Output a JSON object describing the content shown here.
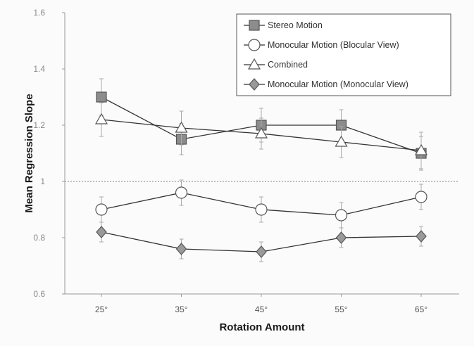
{
  "chart_data": {
    "type": "line",
    "title": "",
    "xlabel": "Rotation Amount",
    "ylabel": "Mean Regression Slope",
    "categories": [
      "25°",
      "35°",
      "45°",
      "55°",
      "65°"
    ],
    "ylim": [
      0.6,
      1.6
    ],
    "yticks": [
      "0.6",
      "0.8",
      "1",
      "1.2",
      "1.4",
      "1.6"
    ],
    "reference_line": 1.0,
    "legend_position": "top-right",
    "grid": false,
    "series": [
      {
        "name": "Stereo Motion",
        "marker": "square",
        "color": "#8c8c8c",
        "values": [
          1.3,
          1.15,
          1.2,
          1.2,
          1.1
        ],
        "errors": [
          0.065,
          0.055,
          0.06,
          0.055,
          0.06
        ]
      },
      {
        "name": "Monocular Motion (Blocular View)",
        "marker": "circle",
        "color": "#ffffff",
        "values": [
          0.9,
          0.96,
          0.9,
          0.88,
          0.945
        ],
        "errors": [
          0.045,
          0.045,
          0.045,
          0.045,
          0.045
        ]
      },
      {
        "name": "Combined",
        "marker": "triangle",
        "color": "#ffffff",
        "values": [
          1.22,
          1.19,
          1.17,
          1.14,
          1.11
        ],
        "errors": [
          0.06,
          0.06,
          0.055,
          0.055,
          0.065
        ]
      },
      {
        "name": "Monocular Motion (Monocular View)",
        "marker": "diamond",
        "color": "#9a9a9a",
        "values": [
          0.82,
          0.76,
          0.75,
          0.8,
          0.805
        ],
        "errors": [
          0.035,
          0.035,
          0.035,
          0.035,
          0.035
        ]
      }
    ]
  }
}
